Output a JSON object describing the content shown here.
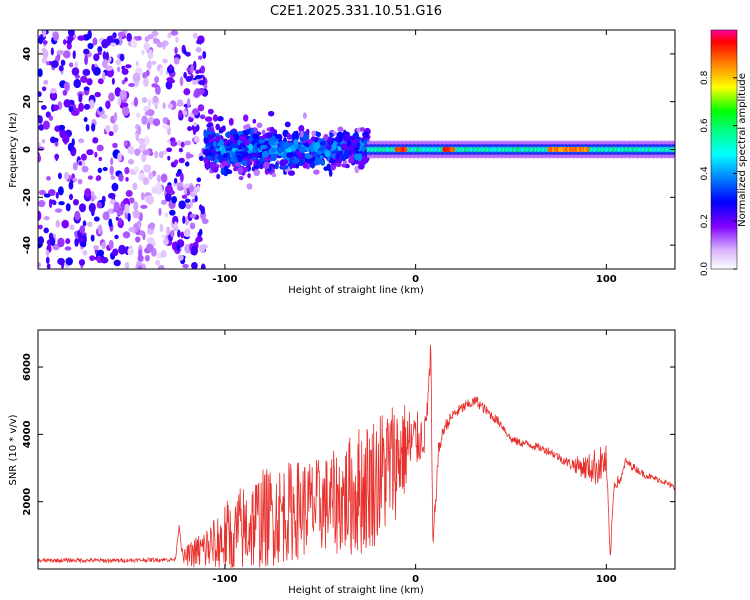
{
  "title": "C2E1.2025.331.10.51.G16",
  "chart_data": [
    {
      "type": "heatmap",
      "xlabel": "Height of straight line (km)",
      "ylabel": "Frequency (Hz)",
      "xlim": [
        -198,
        136
      ],
      "ylim": [
        -50,
        50
      ],
      "xticks": [
        -100,
        0,
        100
      ],
      "yticks": [
        -40,
        -20,
        0,
        20,
        40
      ],
      "colorbar": {
        "label": "Normalized spectral amplitude",
        "range": [
          0,
          1
        ],
        "ticks": [
          0.0,
          0.2,
          0.4,
          0.6,
          0.8
        ]
      },
      "regions": [
        {
          "name": "scattered-noise",
          "x": [
            -198,
            -110
          ],
          "freq_spread": 50,
          "amplitude": 0.2
        },
        {
          "name": "broad-signal",
          "x": [
            -110,
            -25
          ],
          "freq_spread": 10,
          "amplitude": 0.4
        },
        {
          "name": "narrow-signal",
          "x": [
            -25,
            136
          ],
          "freq_spread": 3,
          "amplitude": 0.55
        },
        {
          "name": "peak-spot",
          "x": [
            -10,
            -5
          ],
          "freq": 0,
          "amplitude": 0.97
        },
        {
          "name": "peak-spot",
          "x": [
            15,
            20
          ],
          "freq": 0,
          "amplitude": 0.95
        },
        {
          "name": "peak-spot",
          "x": [
            70,
            90
          ],
          "freq": 0,
          "amplitude": 0.9
        }
      ]
    },
    {
      "type": "line",
      "xlabel": "Height of straight line (km)",
      "ylabel": "SNR (10 * v/v)",
      "xlim": [
        -198,
        136
      ],
      "ylim": [
        0,
        7100
      ],
      "xticks": [
        -100,
        0,
        100
      ],
      "yticks": [
        2000,
        4000,
        6000
      ],
      "series": [
        {
          "name": "SNR",
          "color": "#e8302c",
          "x": [
            -198,
            -180,
            -160,
            -140,
            -126,
            -124,
            -122,
            -120,
            -110,
            -100,
            -90,
            -80,
            -70,
            -60,
            -50,
            -40,
            -30,
            -20,
            -15,
            -10,
            -5,
            0,
            5,
            7,
            8,
            9,
            12,
            15,
            20,
            25,
            30,
            32,
            35,
            40,
            45,
            50,
            55,
            60,
            70,
            80,
            90,
            95,
            100,
            102,
            104,
            108,
            110,
            120,
            130,
            136
          ],
          "y": [
            250,
            260,
            250,
            270,
            280,
            1300,
            300,
            400,
            600,
            900,
            1200,
            1500,
            1650,
            1800,
            1900,
            2000,
            2300,
            2700,
            3000,
            3300,
            3600,
            3800,
            4000,
            5500,
            6400,
            600,
            3500,
            4200,
            4600,
            4800,
            4950,
            5000,
            4800,
            4550,
            4300,
            3850,
            3750,
            3700,
            3500,
            3150,
            3000,
            3050,
            3200,
            300,
            2500,
            2700,
            3200,
            2800,
            2600,
            2400
          ],
          "noise_amplitude": [
            60,
            60,
            60,
            60,
            60,
            60,
            200,
            300,
            700,
            1100,
            1400,
            1500,
            1500,
            1500,
            1400,
            1600,
            2000,
            2000,
            2000,
            1800,
            1400,
            900,
            600,
            500,
            500,
            400,
            250,
            200,
            180,
            170,
            160,
            160,
            160,
            150,
            140,
            130,
            120,
            120,
            120,
            150,
            400,
            600,
            500,
            200,
            200,
            150,
            120,
            100,
            90,
            90
          ]
        }
      ]
    }
  ]
}
